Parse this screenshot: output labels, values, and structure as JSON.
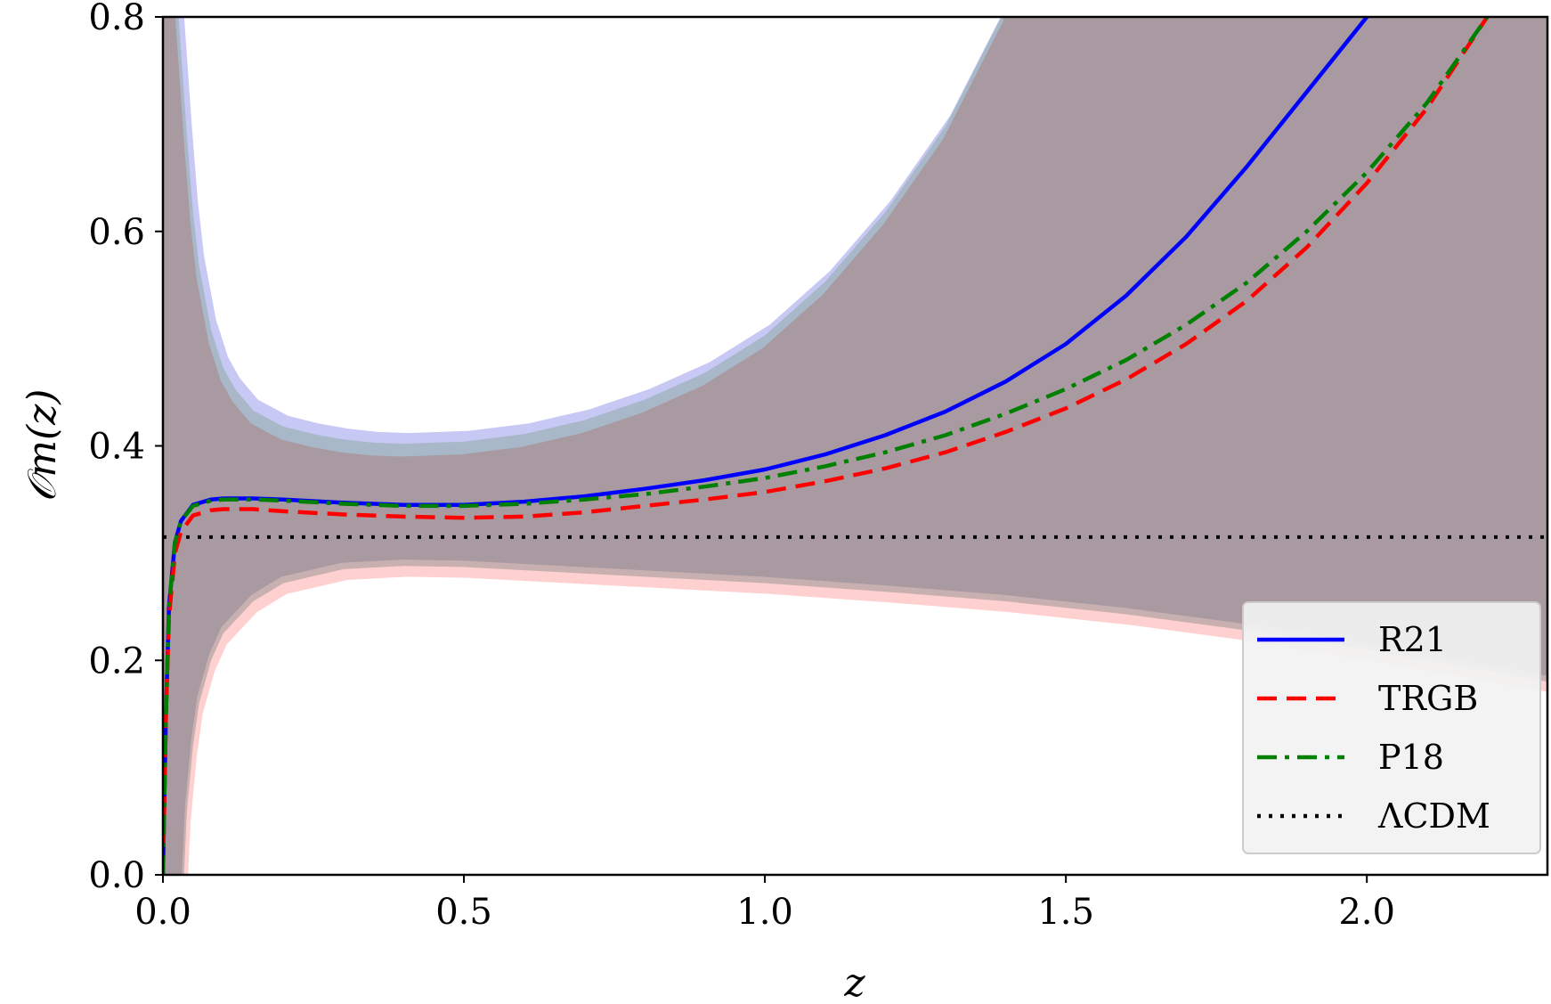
{
  "chart_data": {
    "type": "line",
    "xlabel": "z",
    "ylabel": "𝒪m(z)",
    "xlim": [
      0.0,
      2.3
    ],
    "ylim": [
      0.0,
      0.8
    ],
    "xticks": [
      "0.0",
      "0.5",
      "1.0",
      "1.5",
      "2.0"
    ],
    "yticks": [
      "0.0",
      "0.2",
      "0.4",
      "0.6",
      "0.8"
    ],
    "grid": false,
    "legend_position": "lower-right",
    "colors": {
      "band": "#a89aa0",
      "band_upper_edge": "#c8c8f4",
      "band_upper_inner": "#a8b8c8",
      "band_lower_edge": "#ffd0d0",
      "band_lower_inner": "#c8b0b0"
    },
    "reference_line": {
      "name": "ΛCDM",
      "y": 0.315,
      "color": "#000000",
      "style": "dotted"
    },
    "series": [
      {
        "name": "R21",
        "color": "#0000ff",
        "style": "solid",
        "x": [
          0.0,
          0.005,
          0.01,
          0.02,
          0.03,
          0.05,
          0.08,
          0.1,
          0.15,
          0.2,
          0.3,
          0.4,
          0.5,
          0.6,
          0.7,
          0.8,
          0.9,
          1.0,
          1.1,
          1.2,
          1.3,
          1.4,
          1.5,
          1.6,
          1.7,
          1.8,
          1.9,
          2.0
        ],
        "y": [
          0.0,
          0.15,
          0.25,
          0.31,
          0.33,
          0.345,
          0.35,
          0.351,
          0.351,
          0.35,
          0.347,
          0.345,
          0.345,
          0.348,
          0.353,
          0.36,
          0.368,
          0.378,
          0.392,
          0.41,
          0.432,
          0.46,
          0.495,
          0.54,
          0.595,
          0.66,
          0.73,
          0.8
        ]
      },
      {
        "name": "TRGB",
        "color": "#ff0000",
        "style": "dashed",
        "x": [
          0.0,
          0.005,
          0.01,
          0.02,
          0.03,
          0.05,
          0.08,
          0.1,
          0.15,
          0.2,
          0.3,
          0.4,
          0.5,
          0.6,
          0.7,
          0.8,
          0.9,
          1.0,
          1.1,
          1.2,
          1.3,
          1.4,
          1.5,
          1.6,
          1.7,
          1.8,
          1.9,
          2.0,
          2.1,
          2.2
        ],
        "y": [
          0.0,
          0.15,
          0.24,
          0.3,
          0.32,
          0.335,
          0.34,
          0.341,
          0.341,
          0.339,
          0.336,
          0.334,
          0.333,
          0.334,
          0.338,
          0.344,
          0.35,
          0.357,
          0.367,
          0.379,
          0.394,
          0.413,
          0.435,
          0.462,
          0.495,
          0.535,
          0.585,
          0.645,
          0.715,
          0.8
        ]
      },
      {
        "name": "P18",
        "color": "#008000",
        "style": "dashdot",
        "x": [
          0.0,
          0.005,
          0.01,
          0.02,
          0.03,
          0.05,
          0.08,
          0.1,
          0.15,
          0.2,
          0.3,
          0.4,
          0.5,
          0.6,
          0.7,
          0.8,
          0.9,
          1.0,
          1.1,
          1.2,
          1.3,
          1.4,
          1.5,
          1.6,
          1.7,
          1.8,
          1.9,
          2.0,
          2.1,
          2.2
        ],
        "y": [
          0.0,
          0.15,
          0.25,
          0.31,
          0.33,
          0.344,
          0.349,
          0.35,
          0.35,
          0.349,
          0.346,
          0.344,
          0.344,
          0.346,
          0.35,
          0.355,
          0.362,
          0.37,
          0.381,
          0.394,
          0.41,
          0.43,
          0.453,
          0.48,
          0.513,
          0.552,
          0.6,
          0.655,
          0.72,
          0.8
        ]
      }
    ],
    "band": {
      "x": [
        0.0,
        0.005,
        0.01,
        0.02,
        0.03,
        0.04,
        0.06,
        0.08,
        0.1,
        0.15,
        0.2,
        0.3,
        0.4,
        0.5,
        0.6,
        0.7,
        0.8,
        0.9,
        1.0,
        1.1,
        1.2,
        1.3,
        1.4,
        1.5,
        1.6,
        1.7,
        1.8,
        1.9,
        2.0,
        2.1,
        2.2,
        2.3
      ],
      "upper": [
        0.8,
        0.8,
        0.8,
        0.8,
        0.8,
        0.8,
        0.8,
        0.8,
        0.8,
        0.8,
        0.8,
        0.8,
        0.8,
        0.8,
        0.8,
        0.8,
        0.8,
        0.8,
        0.8,
        0.8,
        0.8,
        0.8,
        0.8,
        0.8,
        0.8,
        0.8,
        0.8,
        0.8,
        0.8,
        0.8,
        0.8,
        0.8
      ],
      "lower": [
        0.0,
        0.0,
        0.0,
        0.0,
        0.0,
        0.0,
        0.0,
        0.0,
        0.0,
        0.0,
        0.0,
        0.0,
        0.0,
        0.0,
        0.0,
        0.0,
        0.0,
        0.0,
        0.0,
        0.0,
        0.0,
        0.0,
        0.0,
        0.0,
        0.0,
        0.0,
        0.0,
        0.0,
        0.0,
        0.0,
        0.0,
        0.0
      ],
      "hole_upper_boundary": {
        "x": [
          0.025,
          0.03,
          0.04,
          0.05,
          0.06,
          0.08,
          0.1,
          0.12,
          0.15,
          0.2,
          0.25,
          0.3,
          0.35,
          0.4,
          0.5,
          0.6,
          0.7,
          0.8,
          0.9,
          1.0,
          1.1,
          1.2,
          1.3,
          1.35,
          1.4
        ],
        "y": [
          0.8,
          0.76,
          0.68,
          0.61,
          0.56,
          0.5,
          0.465,
          0.445,
          0.425,
          0.41,
          0.403,
          0.398,
          0.395,
          0.394,
          0.396,
          0.403,
          0.416,
          0.435,
          0.46,
          0.495,
          0.545,
          0.61,
          0.69,
          0.745,
          0.8
        ]
      },
      "hole_lower_boundary": {
        "x": [
          0.035,
          0.04,
          0.05,
          0.06,
          0.08,
          0.1,
          0.15,
          0.2,
          0.3,
          0.4,
          0.5,
          0.6,
          0.8,
          1.0,
          1.2,
          1.4,
          1.6,
          1.8,
          2.0,
          2.1,
          2.2,
          2.3
        ],
        "y": [
          0.0,
          0.06,
          0.12,
          0.16,
          0.2,
          0.225,
          0.255,
          0.272,
          0.285,
          0.288,
          0.287,
          0.284,
          0.278,
          0.272,
          0.264,
          0.255,
          0.243,
          0.228,
          0.21,
          0.2,
          0.19,
          0.18
        ]
      }
    }
  }
}
